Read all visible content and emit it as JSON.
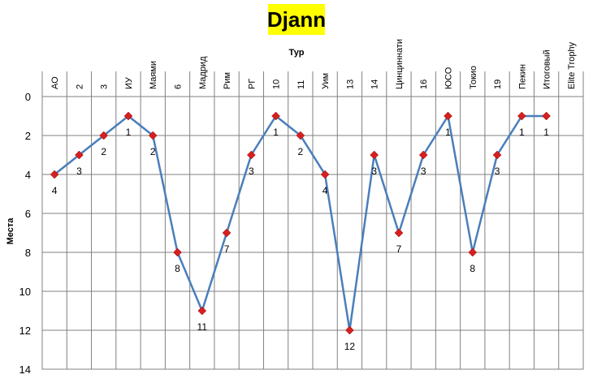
{
  "chart_data": {
    "type": "line",
    "title": "Djann",
    "xlabel": "Тур",
    "ylabel": "Места",
    "categories": [
      "АО",
      "2",
      "3",
      "ИУ",
      "Маями",
      "6",
      "Мадрид",
      "Рим",
      "РГ",
      "10",
      "11",
      "Уим",
      "13",
      "14",
      "Цинциннати",
      "16",
      "ЮСО",
      "Токио",
      "19",
      "Пекин",
      "Итоговый",
      "Elite Trophy"
    ],
    "series": [
      {
        "values": [
          4,
          3,
          2,
          1,
          2,
          8,
          11,
          7,
          3,
          1,
          2,
          4,
          12,
          3,
          7,
          3,
          1,
          8,
          3,
          1,
          1,
          null
        ]
      }
    ],
    "ylim": [
      0,
      14
    ],
    "yticks": [
      0,
      2,
      4,
      6,
      8,
      10,
      12,
      14
    ],
    "y_inverted": true,
    "x_axis_position": "top",
    "grid": true,
    "colors": {
      "line": "#4a7ebb",
      "marker": "#d62020",
      "title_bg": "#ffff00",
      "grid": "#808080"
    }
  }
}
